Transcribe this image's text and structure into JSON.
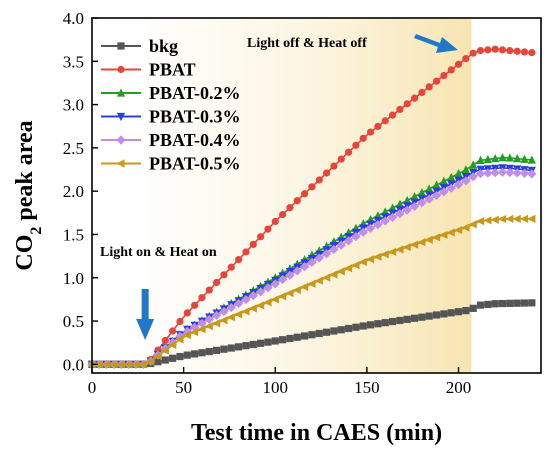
{
  "chart_data": {
    "type": "line",
    "xlabel": "Test time in CAES (min)",
    "ylabel": {
      "prefix": "CO",
      "sub": "2",
      "suffix": " peak area"
    },
    "xlim": [
      0,
      245
    ],
    "ylim": [
      -0.1,
      4.0
    ],
    "xticks": [
      "0",
      "50",
      "100",
      "150",
      "200"
    ],
    "yticks": [
      "0.0",
      "0.5",
      "1.0",
      "1.5",
      "2.0",
      "2.5",
      "3.0",
      "3.5",
      "4.0"
    ],
    "grid": false,
    "legend_position": "top-left",
    "shaded_region": {
      "x_start": 30,
      "x_end": 207,
      "color": "#f5e6b8"
    },
    "annotations": [
      {
        "text": "Light off & Heat off",
        "x": 170,
        "y": 3.75
      },
      {
        "text": "Light on & Heat on",
        "x": 40,
        "y": 2.25
      }
    ],
    "series": [
      {
        "name": "bkg",
        "color": "#555555",
        "marker": "square",
        "points": [
          [
            0,
            0
          ],
          [
            30,
            0
          ],
          [
            50,
            0.1
          ],
          [
            100,
            0.27
          ],
          [
            150,
            0.45
          ],
          [
            207,
            0.63
          ],
          [
            210,
            0.68
          ],
          [
            220,
            0.7
          ],
          [
            240,
            0.71
          ]
        ]
      },
      {
        "name": "PBAT",
        "color": "#e8443a",
        "marker": "circle",
        "points": [
          [
            0,
            0
          ],
          [
            30,
            0
          ],
          [
            50,
            0.55
          ],
          [
            100,
            1.65
          ],
          [
            150,
            2.65
          ],
          [
            207,
            3.58
          ],
          [
            210,
            3.62
          ],
          [
            220,
            3.64
          ],
          [
            240,
            3.6
          ]
        ]
      },
      {
        "name": "PBAT-0.2%",
        "color": "#20a020",
        "marker": "triangle-up",
        "points": [
          [
            0,
            0
          ],
          [
            30,
            0
          ],
          [
            50,
            0.38
          ],
          [
            100,
            1.0
          ],
          [
            150,
            1.65
          ],
          [
            207,
            2.28
          ],
          [
            210,
            2.35
          ],
          [
            225,
            2.39
          ],
          [
            240,
            2.36
          ]
        ]
      },
      {
        "name": "PBAT-0.3%",
        "color": "#2a3fe0",
        "marker": "triangle-down",
        "points": [
          [
            0,
            0
          ],
          [
            30,
            0
          ],
          [
            50,
            0.38
          ],
          [
            100,
            0.97
          ],
          [
            150,
            1.6
          ],
          [
            207,
            2.2
          ],
          [
            210,
            2.25
          ],
          [
            225,
            2.27
          ],
          [
            240,
            2.24
          ]
        ]
      },
      {
        "name": "PBAT-0.4%",
        "color": "#c08ee8",
        "marker": "diamond",
        "points": [
          [
            0,
            0
          ],
          [
            30,
            0
          ],
          [
            50,
            0.36
          ],
          [
            100,
            0.93
          ],
          [
            150,
            1.55
          ],
          [
            207,
            2.15
          ],
          [
            210,
            2.2
          ],
          [
            225,
            2.22
          ],
          [
            240,
            2.2
          ]
        ]
      },
      {
        "name": "PBAT-0.5%",
        "color": "#c9981a",
        "marker": "triangle-left",
        "points": [
          [
            0,
            0
          ],
          [
            30,
            0
          ],
          [
            50,
            0.32
          ],
          [
            100,
            0.75
          ],
          [
            150,
            1.2
          ],
          [
            207,
            1.6
          ],
          [
            210,
            1.65
          ],
          [
            225,
            1.68
          ],
          [
            240,
            1.68
          ]
        ]
      }
    ]
  }
}
